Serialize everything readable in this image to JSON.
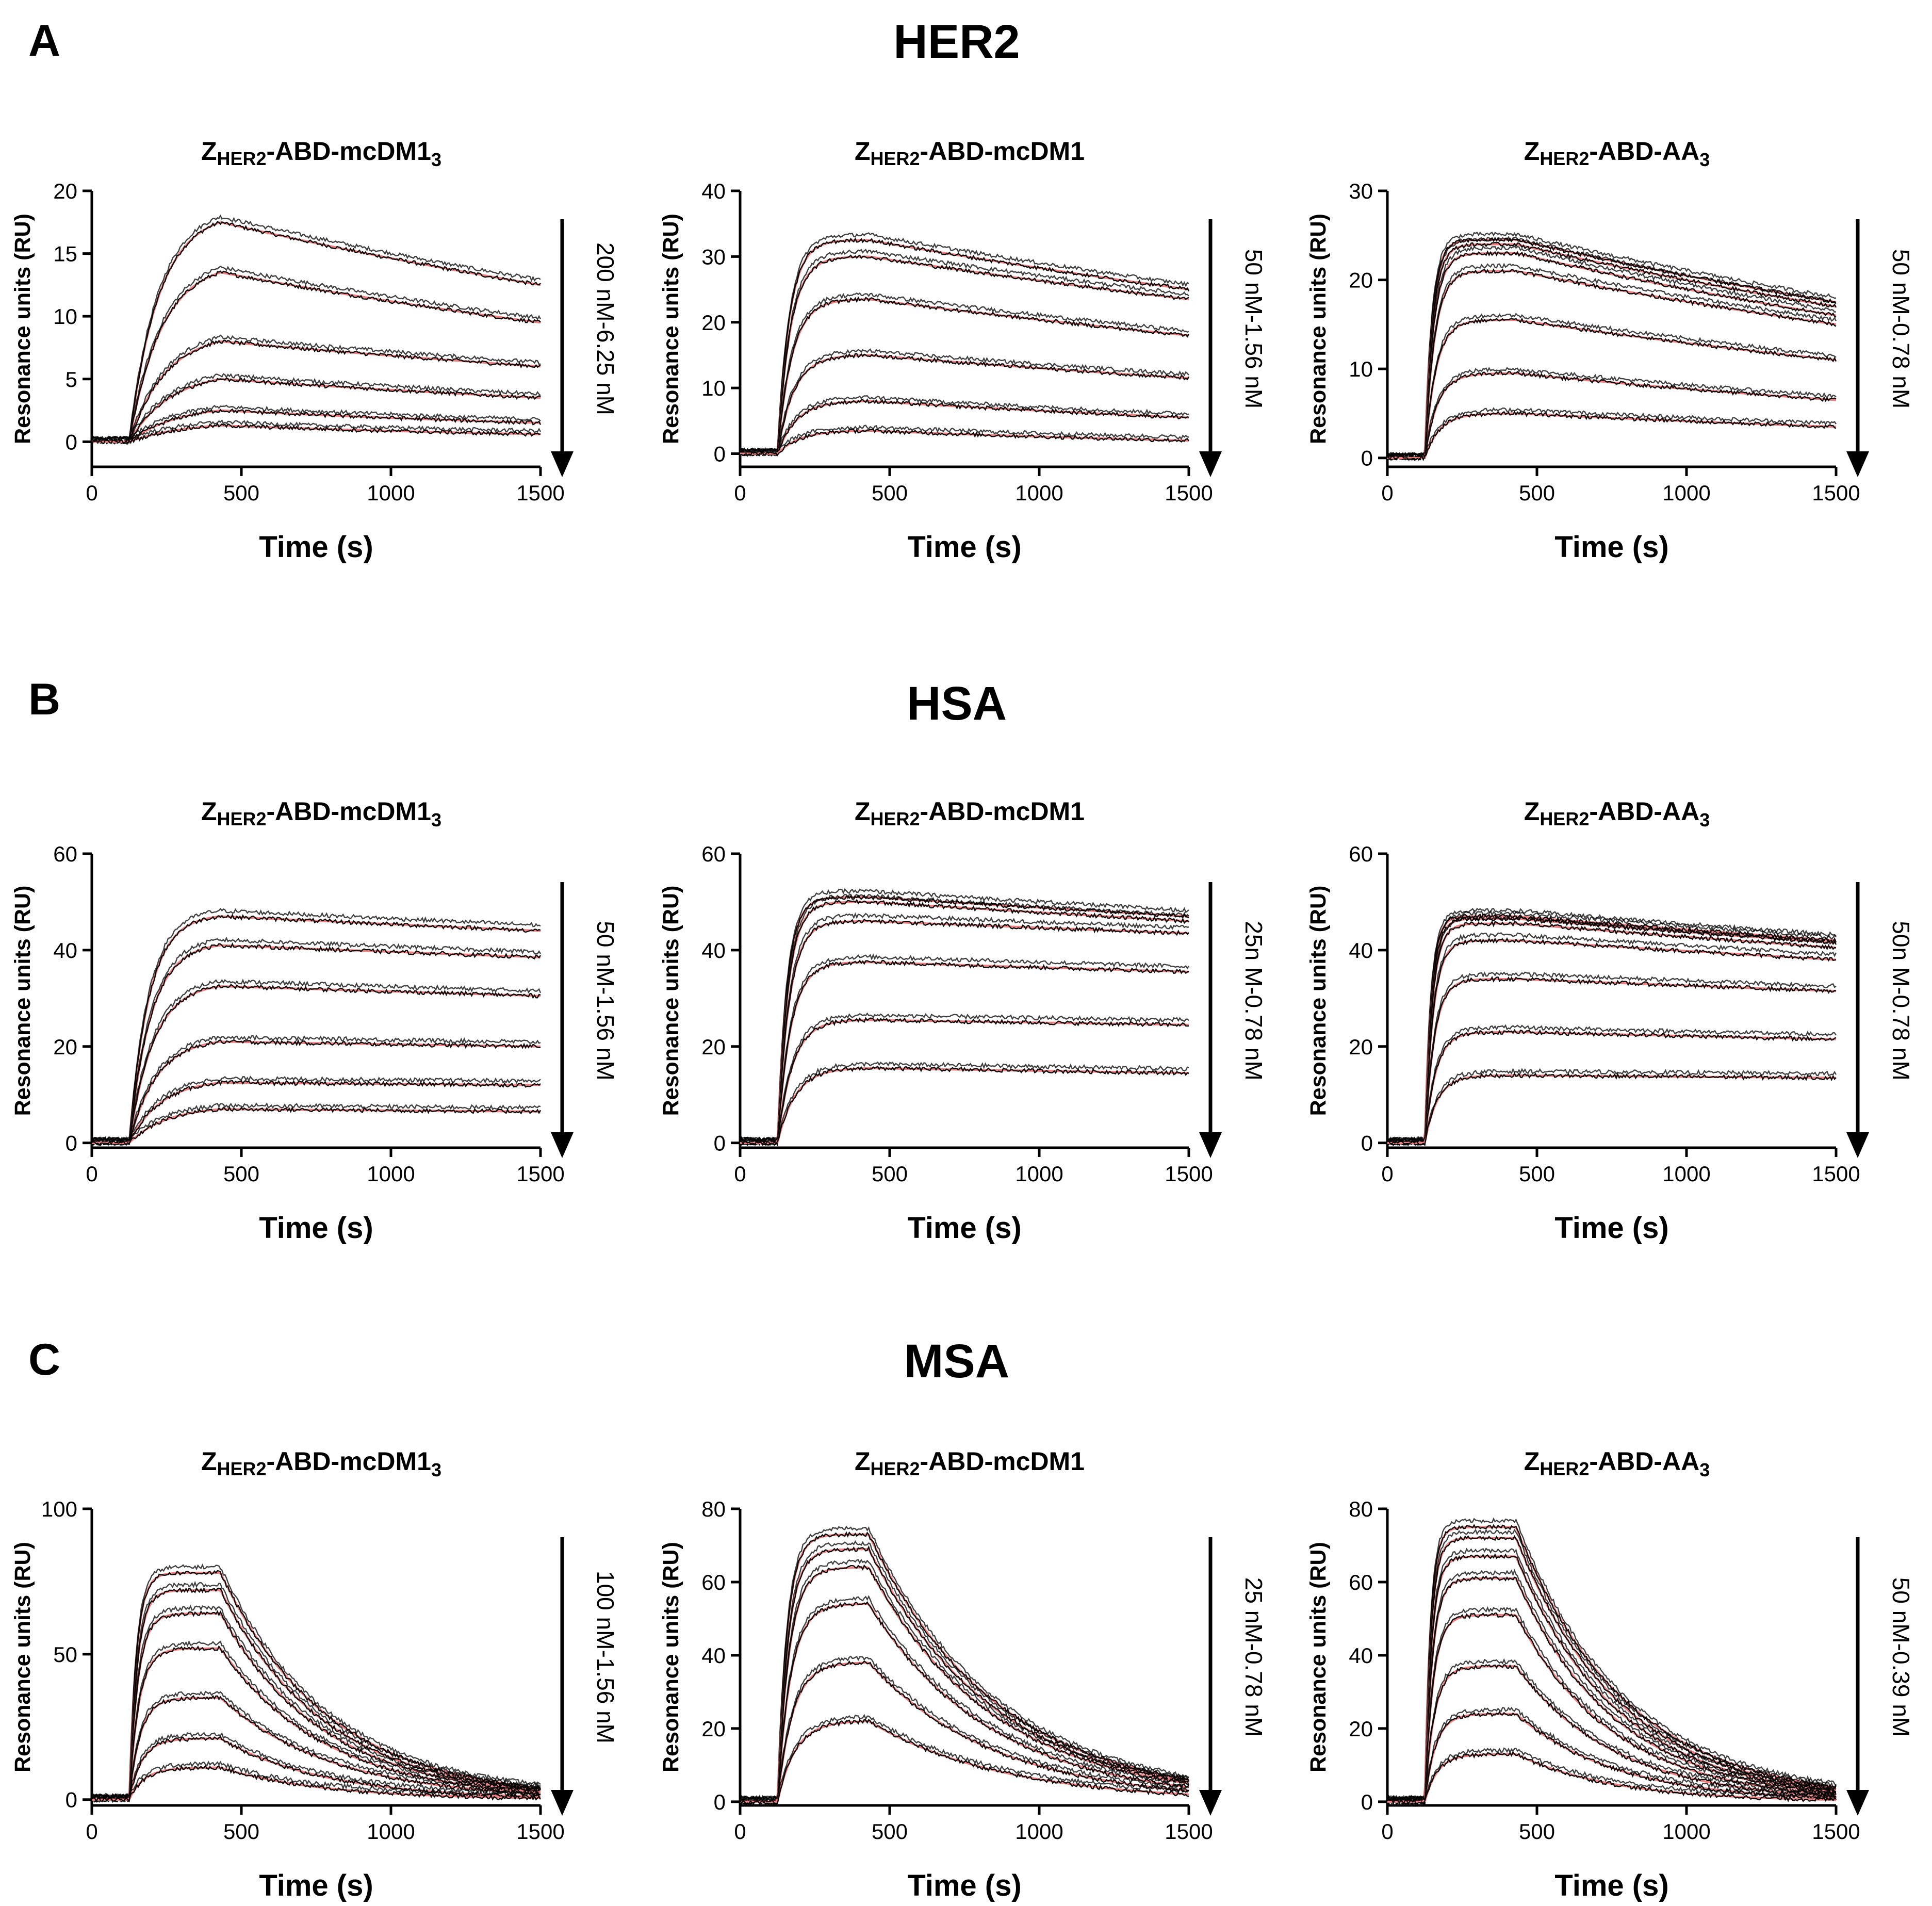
{
  "rows": [
    {
      "letter": "A",
      "title": "HER2"
    },
    {
      "letter": "B",
      "title": "HSA"
    },
    {
      "letter": "C",
      "title": "MSA"
    }
  ],
  "columns": [
    {
      "prefix": "Z",
      "sub": "HER2",
      "name": "-ABD-mcDM1",
      "suffix": "3"
    },
    {
      "prefix": "Z",
      "sub": "HER2",
      "name": "-ABD-mcDM1",
      "suffix": ""
    },
    {
      "prefix": "Z",
      "sub": "HER2",
      "name": "-ABD-AA",
      "suffix": "3"
    }
  ],
  "colors": {
    "measured": "#000000",
    "fit": "#f08080",
    "axis": "#000000"
  },
  "chart_data": [
    {
      "type": "line",
      "row": 0,
      "col": 0,
      "xlabel": "Time (s)",
      "ylabel": "Resonance units (RU)",
      "xlim": [
        0,
        1500
      ],
      "ylim": [
        -2,
        20
      ],
      "xticks": [
        0,
        500,
        1000,
        1500
      ],
      "yticks": [
        0,
        5,
        10,
        15,
        20
      ],
      "concentration_label": "200 nM-6.25 nM",
      "injection_start": 125,
      "injection_end": 430,
      "curves": [
        {
          "plateau": 17.5,
          "end": 12.5
        },
        {
          "plateau": 13.5,
          "end": 9.5
        },
        {
          "plateau": 8.0,
          "end": 6.0
        },
        {
          "plateau": 5.0,
          "end": 3.5
        },
        {
          "plateau": 2.5,
          "end": 1.5
        },
        {
          "plateau": 1.3,
          "end": 0.6
        }
      ],
      "kobs": 0.008
    },
    {
      "type": "line",
      "row": 0,
      "col": 1,
      "xlabel": "Time (s)",
      "ylabel": "Resonance units (RU)",
      "xlim": [
        0,
        1500
      ],
      "ylim": [
        -2,
        40
      ],
      "xticks": [
        0,
        500,
        1000,
        1500
      ],
      "yticks": [
        0,
        10,
        20,
        30,
        40
      ],
      "concentration_label": "50 nM-1.56 nM",
      "injection_start": 125,
      "injection_end": 430,
      "curves": [
        {
          "plateau": 32.5,
          "end": 25.0
        },
        {
          "plateau": 30.0,
          "end": 23.5
        },
        {
          "plateau": 23.5,
          "end": 18.0
        },
        {
          "plateau": 15.0,
          "end": 11.5
        },
        {
          "plateau": 8.0,
          "end": 5.5
        },
        {
          "plateau": 3.5,
          "end": 2.0
        }
      ],
      "kobs": 0.02
    },
    {
      "type": "line",
      "row": 0,
      "col": 2,
      "xlabel": "Time (s)",
      "ylabel": "Resonance units (RU)",
      "xlim": [
        0,
        1500
      ],
      "ylim": [
        -1,
        30
      ],
      "xticks": [
        0,
        500,
        1000,
        1500
      ],
      "yticks": [
        0,
        10,
        20,
        30
      ],
      "concentration_label": "50 nM-0.78 nM",
      "injection_start": 125,
      "injection_end": 430,
      "curves": [
        {
          "plateau": 24.5,
          "end": 17.5
        },
        {
          "plateau": 24.0,
          "end": 17.0
        },
        {
          "plateau": 23.0,
          "end": 16.0
        },
        {
          "plateau": 21.0,
          "end": 15.0
        },
        {
          "plateau": 15.5,
          "end": 11.0
        },
        {
          "plateau": 9.5,
          "end": 6.5
        },
        {
          "plateau": 5.0,
          "end": 3.5
        }
      ],
      "kobs": 0.03
    },
    {
      "type": "line",
      "row": 1,
      "col": 0,
      "xlabel": "Time (s)",
      "ylabel": "Resonance units (RU)",
      "xlim": [
        0,
        1500
      ],
      "ylim": [
        -1,
        60
      ],
      "xticks": [
        0,
        500,
        1000,
        1500
      ],
      "yticks": [
        0,
        20,
        40,
        60
      ],
      "concentration_label": "50 nM-1.56 nM",
      "injection_start": 125,
      "injection_end": 430,
      "curves": [
        {
          "plateau": 47.0,
          "end": 44.0
        },
        {
          "plateau": 41.0,
          "end": 38.5
        },
        {
          "plateau": 32.5,
          "end": 30.5
        },
        {
          "plateau": 21.0,
          "end": 20.0
        },
        {
          "plateau": 12.5,
          "end": 12.0
        },
        {
          "plateau": 7.0,
          "end": 6.5
        }
      ],
      "kobs": 0.012
    },
    {
      "type": "line",
      "row": 1,
      "col": 1,
      "xlabel": "Time (s)",
      "ylabel": "Resonance units (RU)",
      "xlim": [
        0,
        1500
      ],
      "ylim": [
        -1,
        60
      ],
      "xticks": [
        0,
        500,
        1000,
        1500
      ],
      "yticks": [
        0,
        20,
        40,
        60
      ],
      "concentration_label": "25n M-0.78 nM",
      "injection_start": 125,
      "injection_end": 430,
      "curves": [
        {
          "plateau": 51.0,
          "end": 47.0
        },
        {
          "plateau": 50.0,
          "end": 46.0
        },
        {
          "plateau": 46.0,
          "end": 43.5
        },
        {
          "plateau": 37.5,
          "end": 35.5
        },
        {
          "plateau": 25.5,
          "end": 24.5
        },
        {
          "plateau": 15.5,
          "end": 14.5
        }
      ],
      "kobs": 0.025
    },
    {
      "type": "line",
      "row": 1,
      "col": 2,
      "xlabel": "Time (s)",
      "ylabel": "Resonance units (RU)",
      "xlim": [
        0,
        1500
      ],
      "ylim": [
        -1,
        60
      ],
      "xticks": [
        0,
        500,
        1000,
        1500
      ],
      "yticks": [
        0,
        20,
        40,
        60
      ],
      "concentration_label": "50n M-0.78 nM",
      "injection_start": 125,
      "injection_end": 430,
      "curves": [
        {
          "plateau": 47.0,
          "end": 42.0
        },
        {
          "plateau": 46.5,
          "end": 41.5
        },
        {
          "plateau": 45.5,
          "end": 40.5
        },
        {
          "plateau": 42.0,
          "end": 38.0
        },
        {
          "plateau": 34.0,
          "end": 31.5
        },
        {
          "plateau": 23.0,
          "end": 21.5
        },
        {
          "plateau": 14.0,
          "end": 13.5
        }
      ],
      "kobs": 0.035
    },
    {
      "type": "line",
      "row": 2,
      "col": 0,
      "xlabel": "Time (s)",
      "ylabel": "Resonance units (RU)",
      "xlim": [
        0,
        1500
      ],
      "ylim": [
        -2,
        100
      ],
      "xticks": [
        0,
        500,
        1000,
        1500
      ],
      "yticks": [
        0,
        50,
        100
      ],
      "concentration_label": "100 nM-1.56 nM",
      "injection_start": 125,
      "injection_end": 430,
      "curves": [
        {
          "plateau": 78.0,
          "end": 4.0
        },
        {
          "plateau": 72.0,
          "end": 3.5
        },
        {
          "plateau": 64.0,
          "end": 3.0
        },
        {
          "plateau": 52.0,
          "end": 2.5
        },
        {
          "plateau": 35.0,
          "end": 2.0
        },
        {
          "plateau": 21.0,
          "end": 1.0
        },
        {
          "plateau": 11.0,
          "end": 0.5
        }
      ],
      "kobs": 0.03
    },
    {
      "type": "line",
      "row": 2,
      "col": 1,
      "xlabel": "Time (s)",
      "ylabel": "Resonance units (RU)",
      "xlim": [
        0,
        1500
      ],
      "ylim": [
        -1,
        80
      ],
      "xticks": [
        0,
        500,
        1000,
        1500
      ],
      "yticks": [
        0,
        20,
        40,
        60,
        80
      ],
      "concentration_label": "25 nM-0.78 nM",
      "injection_start": 125,
      "injection_end": 430,
      "curves": [
        {
          "plateau": 73.0,
          "end": 6.0
        },
        {
          "plateau": 69.0,
          "end": 5.5
        },
        {
          "plateau": 64.0,
          "end": 5.0
        },
        {
          "plateau": 54.0,
          "end": 4.0
        },
        {
          "plateau": 38.0,
          "end": 3.0
        },
        {
          "plateau": 22.0,
          "end": 2.0
        }
      ],
      "kobs": 0.025
    },
    {
      "type": "line",
      "row": 2,
      "col": 2,
      "xlabel": "Time (s)",
      "ylabel": "Resonance units (RU)",
      "xlim": [
        0,
        1500
      ],
      "ylim": [
        -1,
        80
      ],
      "xticks": [
        0,
        500,
        1000,
        1500
      ],
      "yticks": [
        0,
        20,
        40,
        60,
        80
      ],
      "concentration_label": "50 nM-0.39 nM",
      "injection_start": 125,
      "injection_end": 430,
      "curves": [
        {
          "plateau": 75.0,
          "end": 4.0
        },
        {
          "plateau": 72.0,
          "end": 3.5
        },
        {
          "plateau": 67.0,
          "end": 3.0
        },
        {
          "plateau": 61.0,
          "end": 2.5
        },
        {
          "plateau": 51.0,
          "end": 2.0
        },
        {
          "plateau": 37.0,
          "end": 1.5
        },
        {
          "plateau": 24.0,
          "end": 1.0
        },
        {
          "plateau": 13.0,
          "end": 0.5
        }
      ],
      "kobs": 0.035
    }
  ]
}
